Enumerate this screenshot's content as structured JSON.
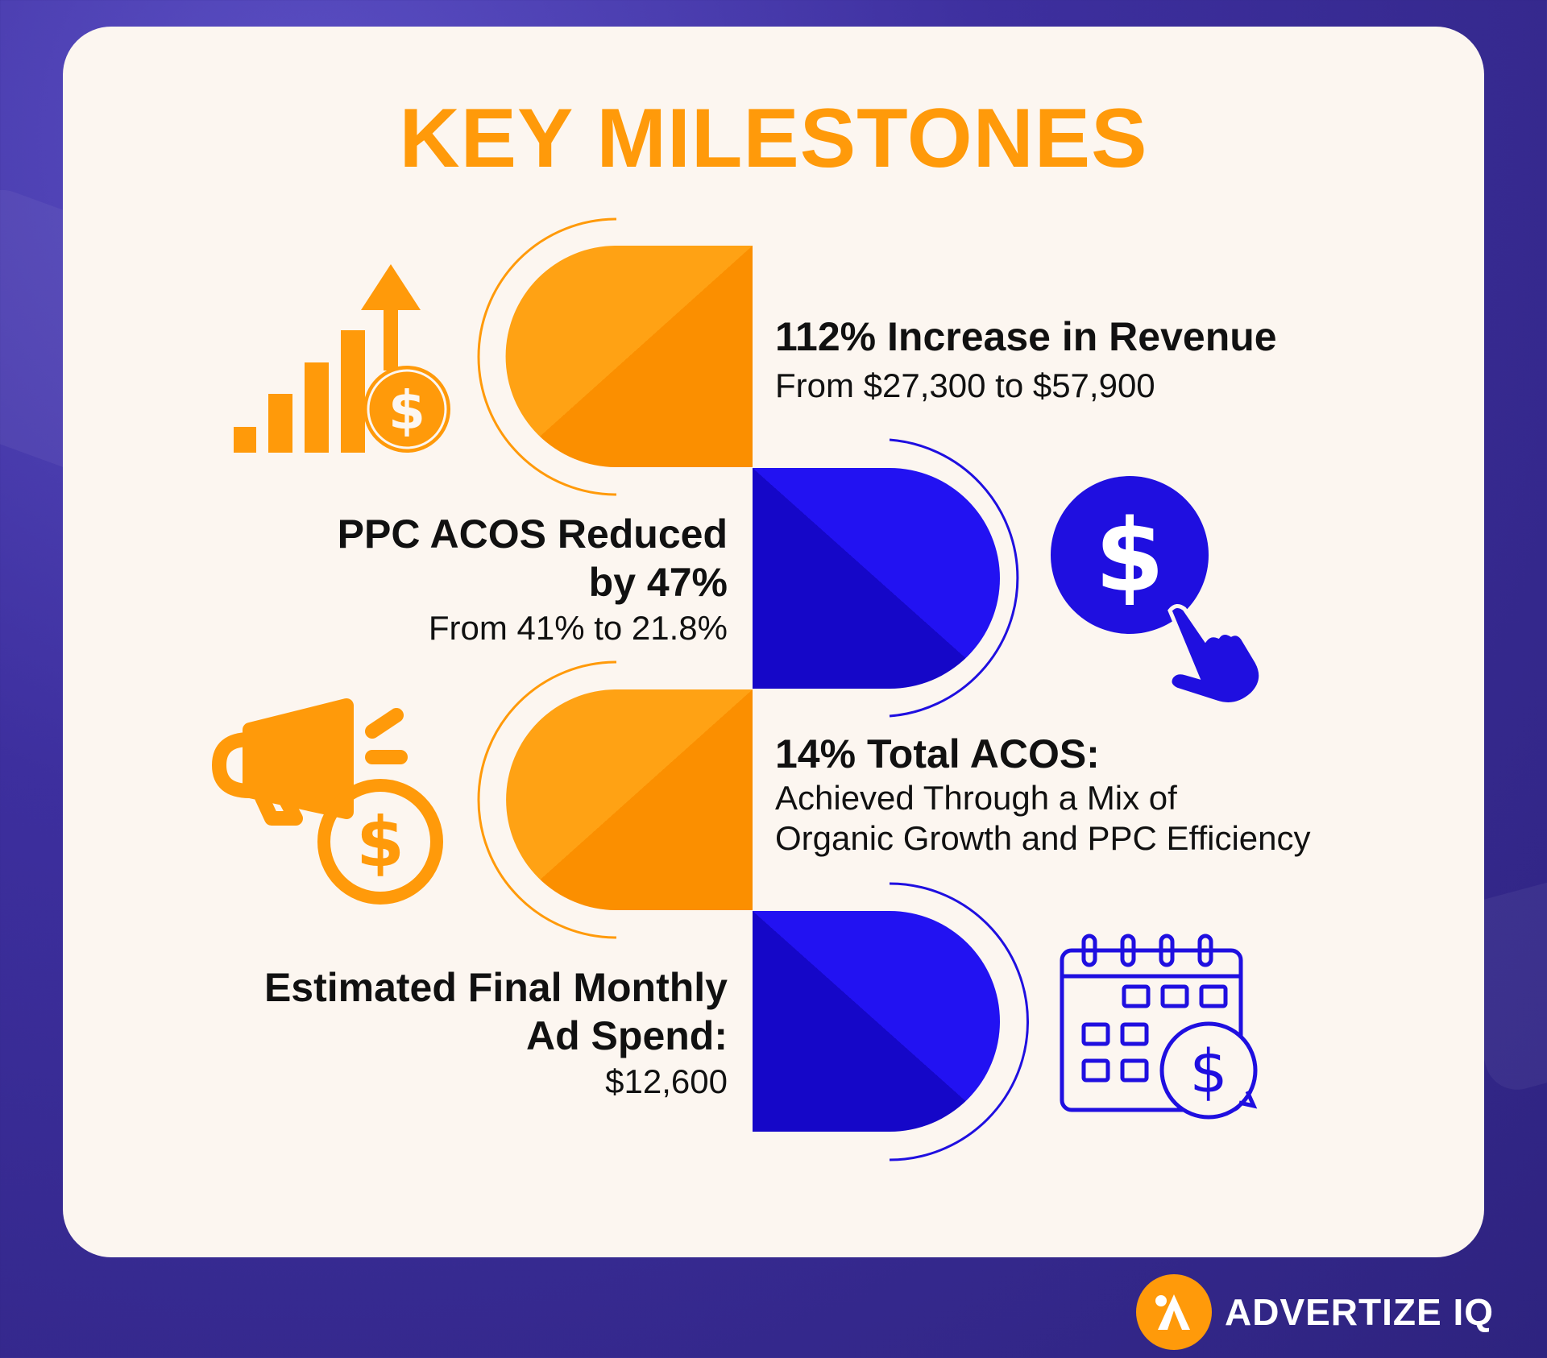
{
  "title": "KEY MILESTONES",
  "colors": {
    "orange": "#ff9a0a",
    "blue": "#1f0fe0",
    "card": "#fcf6f0"
  },
  "milestones": [
    {
      "heading": "112% Increase in Revenue",
      "detail": "From $27,300 to $57,900",
      "icon": "revenue-growth-icon"
    },
    {
      "heading_line1": "PPC ACOS Reduced",
      "heading_line2": "by 47%",
      "detail": "From 41% to 21.8%",
      "icon": "dollar-click-icon"
    },
    {
      "heading": "14% Total ACOS:",
      "detail_line1": "Achieved Through a Mix of",
      "detail_line2": "Organic Growth and PPC Efficiency",
      "icon": "megaphone-dollar-icon"
    },
    {
      "heading_line1": "Estimated Final Monthly",
      "heading_line2": "Ad Spend:",
      "detail": "$12,600",
      "icon": "calendar-dollar-icon"
    }
  ],
  "brand": {
    "name": "ADVERTIZE IQ",
    "mark": "i"
  }
}
